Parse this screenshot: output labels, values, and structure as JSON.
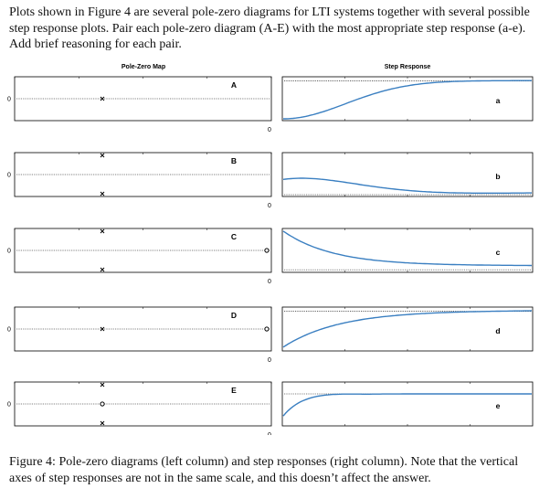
{
  "intro_text": "Plots shown in Figure 4 are several pole-zero diagrams for LTI systems together with several possible step response plots. Pair each pole-zero diagram (A-E) with the most appropriate step response (a-e). Add brief reasoning for each pair.",
  "figure": {
    "left_header": "Pole-Zero Map",
    "right_header": "Step Response",
    "panels": [
      {
        "pz_label": "A",
        "pz_axis_tick": "0",
        "poles": [
          {
            "re": 0,
            "im": 0
          }
        ],
        "zeros": [],
        "sr_label": "a",
        "sr_time_tick": "0",
        "response_shape": "overdamped rise from 0 to steady state"
      },
      {
        "pz_label": "B",
        "pz_axis_tick": "0",
        "poles": [
          {
            "re": 0,
            "im": 1
          },
          {
            "re": 0,
            "im": -1
          }
        ],
        "zeros": [],
        "sr_label": "b",
        "sr_time_tick": "0",
        "response_shape": "starts mid-level, overshoots, settles to baseline"
      },
      {
        "pz_label": "C",
        "pz_axis_tick": "0",
        "poles": [
          {
            "re": 0,
            "im": 1
          },
          {
            "re": 0,
            "im": -1
          }
        ],
        "zeros": [
          {
            "re": 1,
            "im": 0
          }
        ],
        "sr_label": "c",
        "sr_time_tick": "0",
        "response_shape": "starts high, decays to baseline"
      },
      {
        "pz_label": "D",
        "pz_axis_tick": "0",
        "poles": [
          {
            "re": 0,
            "im": 0
          }
        ],
        "zeros": [
          {
            "re": 1,
            "im": 0
          }
        ],
        "sr_label": "d",
        "sr_time_tick": "0",
        "response_shape": "starts mid-level, rises to steady state"
      },
      {
        "pz_label": "E",
        "pz_axis_tick": "0",
        "poles": [
          {
            "re": 0,
            "im": 1
          },
          {
            "re": 0,
            "im": -1
          }
        ],
        "zeros": [
          {
            "re": 0,
            "im": 0
          }
        ],
        "sr_label": "e",
        "sr_time_tick": "0",
        "response_shape": "fast rise with small overshoot, settles to steady state"
      }
    ]
  },
  "caption_text": "Figure 4: Pole-zero diagrams (left column) and step responses (right column). Note that the vertical axes of step responses are not in the same scale, and this doesn’t affect the answer."
}
